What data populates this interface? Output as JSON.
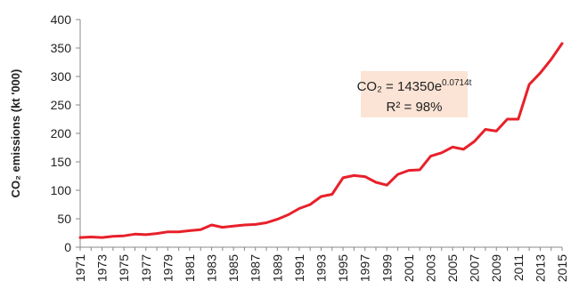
{
  "chart_data": {
    "type": "line",
    "title": "",
    "xlabel": "",
    "ylabel": "CO₂ emissions  (kt '000)",
    "ylim": [
      0,
      400
    ],
    "yticks": [
      0,
      50,
      100,
      150,
      200,
      250,
      300,
      350,
      400
    ],
    "xlim": [
      1971,
      2015
    ],
    "xtick_labels": [
      "1971",
      "1973",
      "1975",
      "1977",
      "1979",
      "1981",
      "1983",
      "1985",
      "1987",
      "1989",
      "1991",
      "1993",
      "1995",
      "1997",
      "1999",
      "2001",
      "2003",
      "2005",
      "2007",
      "2009",
      "2011",
      "2013",
      "2015"
    ],
    "grid": false,
    "legend": "none",
    "series": [
      {
        "color": "#e8202a",
        "x": [
          1971,
          1972,
          1973,
          1974,
          1975,
          1976,
          1977,
          1978,
          1979,
          1980,
          1981,
          1982,
          1983,
          1984,
          1985,
          1986,
          1987,
          1988,
          1989,
          1990,
          1991,
          1992,
          1993,
          1994,
          1995,
          1996,
          1997,
          1998,
          1999,
          2000,
          2001,
          2002,
          2003,
          2004,
          2005,
          2006,
          2007,
          2008,
          2009,
          2010,
          2011,
          2012,
          2013,
          2014,
          2015
        ],
        "values": [
          17,
          18,
          17,
          19,
          20,
          23,
          22,
          24,
          27,
          27,
          29,
          31,
          39,
          35,
          37,
          39,
          40,
          43,
          49,
          57,
          68,
          75,
          89,
          93,
          122,
          126,
          124,
          114,
          109,
          128,
          135,
          136,
          160,
          166,
          176,
          172,
          186,
          207,
          204,
          225,
          225,
          286,
          306,
          330,
          358
        ]
      }
    ],
    "annotation": {
      "equation_prefix": "CO₂ = 14350e",
      "equation_exponent": "0.0714t",
      "r_squared": "R² = 98%",
      "box_color": "#fbe4d5"
    },
    "axis_color": "#888888",
    "line_color": "#e8202a"
  }
}
